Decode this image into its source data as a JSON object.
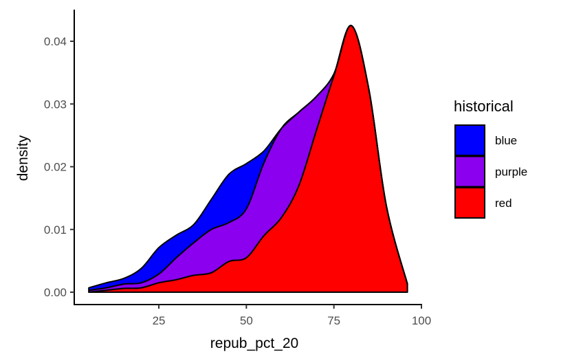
{
  "chart_data": {
    "type": "area",
    "stacked": true,
    "xlabel": "repub_pct_20",
    "ylabel": "density",
    "xlim": [
      5,
      96
    ],
    "ylim": [
      0,
      0.043
    ],
    "x_ticks": [
      25,
      50,
      75,
      100
    ],
    "x_tick_labels": [
      "25",
      "50",
      "75",
      "100"
    ],
    "y_ticks": [
      0,
      0.01,
      0.02,
      0.03,
      0.04
    ],
    "y_tick_labels": [
      "0.00",
      "0.01",
      "0.02",
      "0.03",
      "0.04"
    ],
    "grid": false,
    "legend": {
      "title": "historical",
      "placement": "right"
    },
    "x": [
      5,
      10,
      15,
      20,
      25,
      30,
      35,
      40,
      45,
      50,
      55,
      60,
      65,
      70,
      75,
      80,
      85,
      90,
      96
    ],
    "series": [
      {
        "name": "red",
        "color": "#ff0000",
        "values": [
          0,
          0.0003,
          0.0006,
          0.0007,
          0.0015,
          0.002,
          0.0027,
          0.0031,
          0.0049,
          0.0055,
          0.009,
          0.0119,
          0.017,
          0.0258,
          0.0345,
          0.0425,
          0.0323,
          0.0137,
          0.0013
        ]
      },
      {
        "name": "purple",
        "color": "#8b00ee",
        "values": [
          0.0003,
          0.0004,
          0.0007,
          0.0008,
          0.0014,
          0.0035,
          0.0052,
          0.0069,
          0.0062,
          0.0078,
          0.0116,
          0.0142,
          0.0117,
          0.0054,
          0.0003,
          0,
          0,
          0,
          0
        ]
      },
      {
        "name": "blue",
        "color": "#0000ff",
        "values": [
          0.0004,
          0.0008,
          0.0009,
          0.0023,
          0.0042,
          0.0036,
          0.0029,
          0.0048,
          0.0077,
          0.0072,
          0.0019,
          0,
          0,
          0,
          0,
          0,
          0,
          0,
          0
        ]
      }
    ],
    "legend_order": [
      "blue",
      "purple",
      "red"
    ]
  }
}
